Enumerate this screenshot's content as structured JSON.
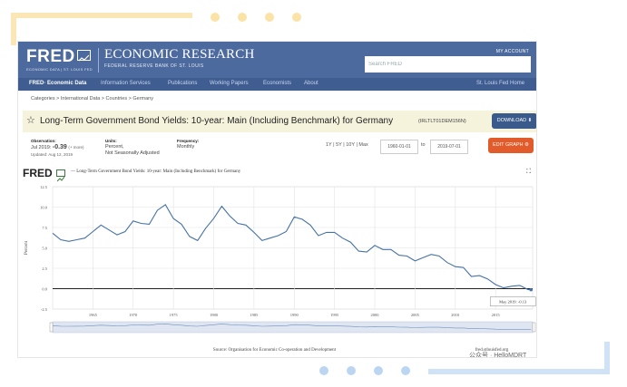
{
  "site": {
    "logo": "FRED",
    "logo_subtitle": "ECONOMIC DATA | ST. LOUIS FED",
    "header_title": "ECONOMIC RESEARCH",
    "header_subtitle": "FEDERAL RESERVE BANK OF ST. LOUIS",
    "my_account": "MY ACCOUNT",
    "search_placeholder": "Search FRED"
  },
  "nav": {
    "items": [
      "FRED· Economic Data",
      "Information Services",
      "Publications",
      "Working Papers",
      "Economists",
      "About"
    ],
    "right": "St. Louis Fed Home"
  },
  "breadcrumb": "Categories > International Data > Countries > Germany",
  "series": {
    "title": "Long-Term Government Bond Yields: 10-year: Main (Including Benchmark) for Germany",
    "id": "(IRLTLT01DEM156N)",
    "download": "DOWNLOAD ⬇",
    "edit": "EDIT GRAPH ⚙"
  },
  "meta": {
    "obs_label": "Observation:",
    "obs_date": "Jul 2019:",
    "obs_value": "-0.39",
    "obs_more": "(+ more)",
    "updated": "Updated: Aug 12, 2019",
    "units_label": "Units:",
    "units_1": "Percent,",
    "units_2": "Not Seasonally Adjusted",
    "freq_label": "Frequency:",
    "freq": "Monthly"
  },
  "range": {
    "buttons": "1Y | 5Y | 10Y | Max",
    "from": "1960-01-01",
    "to_label": "to",
    "to": "2019-07-01"
  },
  "chart_header": {
    "logo": "FRED",
    "title": "— Long-Term Government Bond Yields: 10-year: Main (Including Benchmark) for Germany",
    "expand": "⛶",
    "tooltip": "May 2019: -0.13",
    "source": "Source: Organisation for Economic Co-operation and Development",
    "url": "fred.stlouisfed.org"
  },
  "watermark": "公众号 · HelloMDRT",
  "colors": {
    "header_bg": "#4c6a9e",
    "nav_bg": "#3f5d90",
    "line": "#4572a7",
    "download_btn": "#3a5a8c",
    "edit_btn": "#e25b2a"
  },
  "chart_data": {
    "type": "line",
    "ylabel": "Percent",
    "ylim": [
      -2.5,
      12.5
    ],
    "yticks": [
      12.5,
      10.0,
      7.5,
      5.0,
      2.5,
      0.0,
      -2.5
    ],
    "xticks": [
      "1965",
      "1970",
      "1975",
      "1980",
      "1985",
      "1990",
      "1995",
      "2000",
      "2005",
      "2010",
      "2015"
    ],
    "xlim": [
      1960,
      2019.6
    ],
    "grid": true,
    "series": [
      {
        "x": [
          1960,
          1961,
          1962,
          1963,
          1964,
          1965,
          1966,
          1967,
          1968,
          1969,
          1970,
          1971,
          1972,
          1973,
          1974,
          1975,
          1976,
          1977,
          1978,
          1979,
          1980,
          1981,
          1982,
          1983,
          1984,
          1985,
          1986,
          1987,
          1988,
          1989,
          1990,
          1991,
          1992,
          1993,
          1994,
          1995,
          1996,
          1997,
          1998,
          1999,
          2000,
          2001,
          2002,
          2003,
          2004,
          2005,
          2006,
          2007,
          2008,
          2009,
          2010,
          2011,
          2012,
          2013,
          2014,
          2015,
          2016,
          2017,
          2018,
          2019,
          2019.4
        ],
        "values": [
          6.8,
          6.0,
          5.8,
          6.0,
          6.2,
          7.0,
          7.8,
          7.2,
          6.6,
          7.0,
          8.3,
          8.0,
          7.9,
          9.6,
          10.3,
          8.6,
          7.9,
          6.4,
          5.9,
          7.4,
          8.6,
          10.1,
          8.9,
          8.0,
          7.8,
          6.9,
          5.9,
          6.2,
          6.5,
          7.0,
          8.8,
          8.5,
          7.8,
          6.5,
          6.9,
          6.9,
          6.2,
          5.7,
          4.6,
          4.5,
          5.3,
          4.8,
          4.8,
          4.1,
          4.0,
          3.4,
          3.8,
          4.2,
          4.0,
          3.2,
          2.7,
          2.6,
          1.5,
          1.6,
          1.2,
          0.5,
          0.1,
          0.3,
          0.4,
          -0.1,
          -0.13
        ]
      }
    ]
  }
}
